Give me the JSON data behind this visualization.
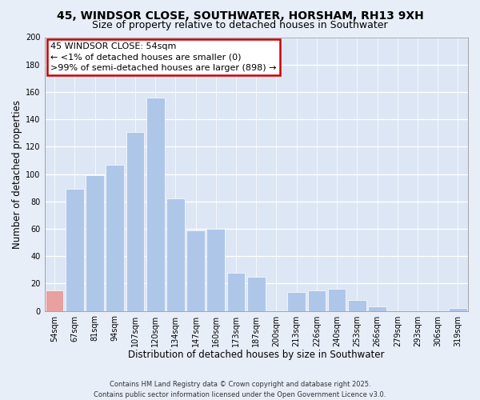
{
  "title": "45, WINDSOR CLOSE, SOUTHWATER, HORSHAM, RH13 9XH",
  "subtitle": "Size of property relative to detached houses in Southwater",
  "xlabel": "Distribution of detached houses by size in Southwater",
  "ylabel": "Number of detached properties",
  "bar_labels": [
    "54sqm",
    "67sqm",
    "81sqm",
    "94sqm",
    "107sqm",
    "120sqm",
    "134sqm",
    "147sqm",
    "160sqm",
    "173sqm",
    "187sqm",
    "200sqm",
    "213sqm",
    "226sqm",
    "240sqm",
    "253sqm",
    "266sqm",
    "279sqm",
    "293sqm",
    "306sqm",
    "319sqm"
  ],
  "bar_values": [
    15,
    89,
    99,
    107,
    131,
    156,
    82,
    59,
    60,
    28,
    25,
    0,
    14,
    15,
    16,
    8,
    3,
    0,
    0,
    0,
    2
  ],
  "bar_color": "#aec6e8",
  "highlight_bar_index": 0,
  "highlight_bar_color": "#e8a0a0",
  "ylim": [
    0,
    200
  ],
  "yticks": [
    0,
    20,
    40,
    60,
    80,
    100,
    120,
    140,
    160,
    180,
    200
  ],
  "annotation_title": "45 WINDSOR CLOSE: 54sqm",
  "annotation_line1": "← <1% of detached houses are smaller (0)",
  "annotation_line2": ">99% of semi-detached houses are larger (898) →",
  "annotation_box_facecolor": "#ffffff",
  "annotation_box_edgecolor": "#cc0000",
  "footer_line1": "Contains HM Land Registry data © Crown copyright and database right 2025.",
  "footer_line2": "Contains public sector information licensed under the Open Government Licence v3.0.",
  "background_color": "#e8eef8",
  "plot_background_color": "#dce6f5",
  "grid_color": "#ffffff",
  "title_fontsize": 10,
  "subtitle_fontsize": 9,
  "axis_label_fontsize": 8.5,
  "tick_fontsize": 7,
  "footer_fontsize": 6,
  "annotation_fontsize": 8
}
